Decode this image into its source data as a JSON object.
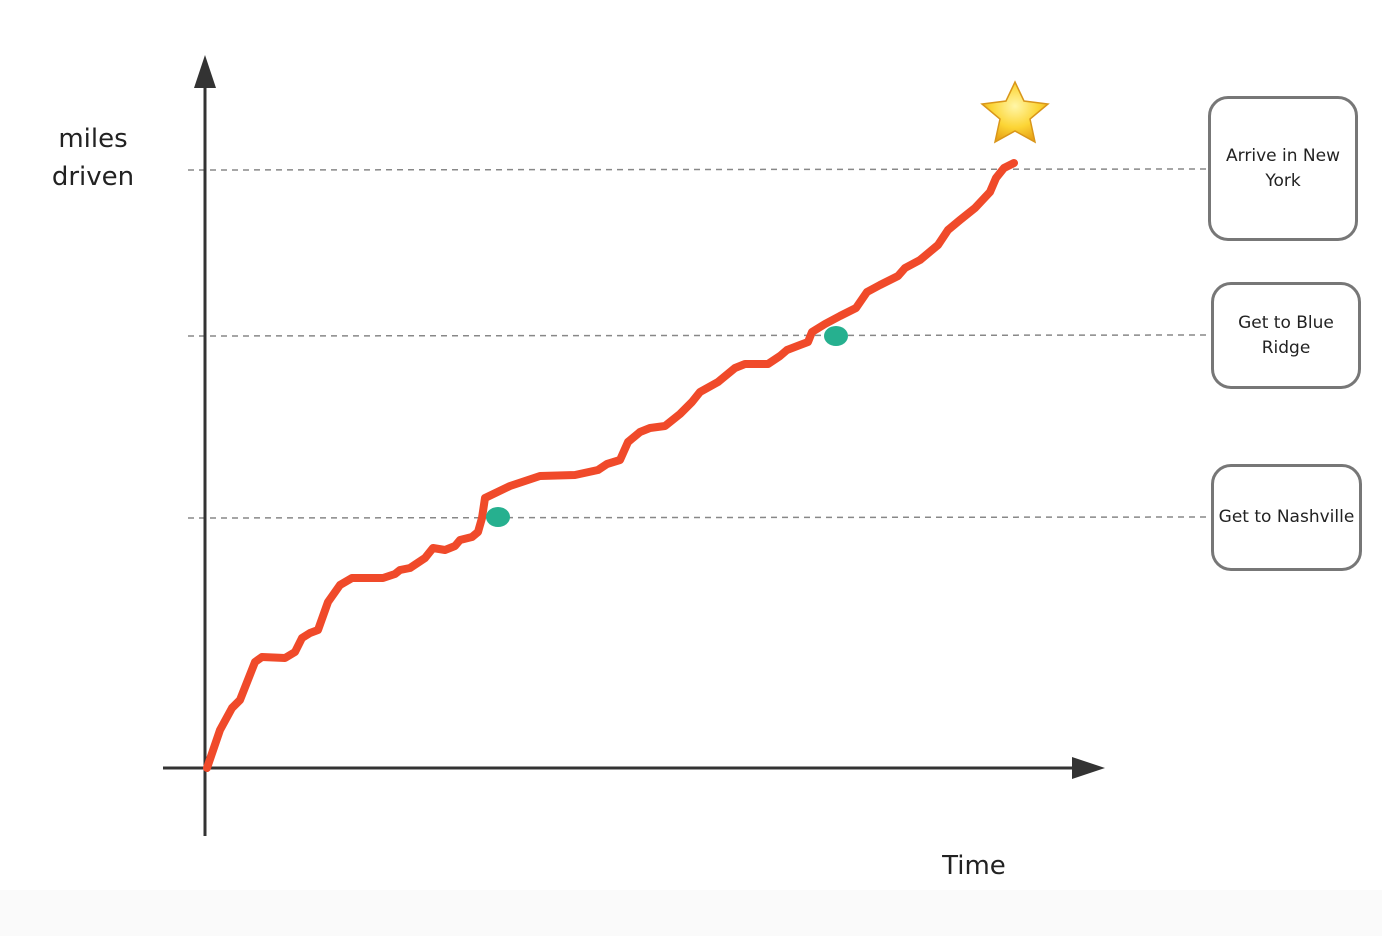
{
  "y_axis_label": "miles driven",
  "x_axis_label": "Time",
  "milestones": [
    "Arrive in New York",
    "Get to Blue Ridge",
    "Get to Nashville"
  ]
}
